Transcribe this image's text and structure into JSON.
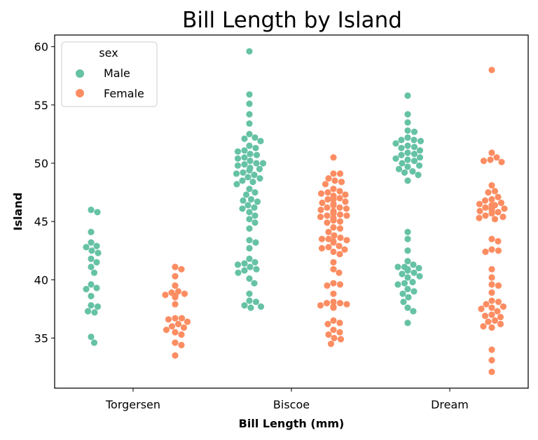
{
  "chart_data": {
    "type": "scatter",
    "subtype": "swarm",
    "title": "Bill Length by Island",
    "xlabel": "Bill Length (mm)",
    "ylabel": "Island",
    "categories": [
      "Torgersen",
      "Biscoe",
      "Dream"
    ],
    "ylim": [
      30.7,
      61.0
    ],
    "yticks": [
      35,
      40,
      45,
      50,
      55,
      60
    ],
    "grid": false,
    "legend": {
      "title": "sex",
      "placement": "top-left"
    },
    "series": [
      {
        "name": "Male",
        "color": "#66c2a5",
        "values": [
          [
            46.0,
            45.8,
            44.1,
            43.2,
            42.9,
            42.8,
            42.5,
            42.3,
            41.8,
            41.5,
            41.1,
            40.6,
            39.6,
            39.3,
            39.2,
            38.6,
            37.8,
            37.7,
            37.3,
            37.2,
            35.1,
            34.6
          ],
          [
            59.6,
            55.9,
            55.1,
            54.2,
            53.4,
            52.5,
            52.2,
            52.1,
            51.9,
            51.5,
            51.3,
            51.1,
            51.0,
            50.8,
            50.7,
            50.5,
            50.4,
            50.2,
            50.0,
            50.0,
            49.9,
            49.8,
            49.6,
            49.5,
            49.4,
            49.2,
            49.1,
            49.0,
            48.8,
            48.7,
            48.5,
            48.4,
            48.2,
            47.8,
            47.5,
            47.3,
            46.9,
            46.8,
            46.7,
            46.4,
            46.2,
            46.1,
            45.8,
            45.5,
            45.2,
            44.9,
            44.4,
            43.4,
            43.2,
            42.7,
            41.8,
            41.5,
            41.4,
            41.3,
            41.1,
            40.9,
            40.8,
            40.6,
            40.1,
            39.7,
            38.8,
            38.2,
            38.1,
            37.8,
            37.7,
            37.6
          ],
          [
            55.8,
            54.2,
            53.5,
            52.8,
            52.7,
            52.2,
            52.0,
            52.0,
            51.9,
            51.7,
            51.5,
            51.4,
            51.3,
            51.1,
            50.9,
            50.8,
            50.7,
            50.5,
            50.4,
            50.3,
            50.2,
            50.0,
            49.8,
            49.7,
            49.5,
            49.3,
            49.2,
            49.0,
            48.5,
            44.1,
            43.5,
            42.5,
            41.6,
            41.3,
            41.1,
            41.1,
            41.0,
            40.9,
            40.8,
            40.6,
            40.5,
            40.3,
            40.2,
            39.8,
            39.7,
            39.6,
            39.2,
            39.0,
            38.8,
            38.5,
            38.1,
            37.6,
            37.3,
            36.3
          ]
        ]
      },
      {
        "name": "Female",
        "color": "#fc8d62",
        "values": [
          [
            41.1,
            40.9,
            40.3,
            39.5,
            39.0,
            38.9,
            38.8,
            38.7,
            38.6,
            38.6,
            38.5,
            37.9,
            36.7,
            36.7,
            36.6,
            36.4,
            36.2,
            36.0,
            35.9,
            35.7,
            35.5,
            35.3,
            34.6,
            34.4,
            33.5
          ],
          [
            50.5,
            49.1,
            49.1,
            48.7,
            48.5,
            48.4,
            48.2,
            47.8,
            47.6,
            47.5,
            47.4,
            47.3,
            47.2,
            47.0,
            46.9,
            46.9,
            46.7,
            46.6,
            46.5,
            46.5,
            46.4,
            46.2,
            46.2,
            46.1,
            46.0,
            45.9,
            45.8,
            45.7,
            45.6,
            45.5,
            45.5,
            45.4,
            45.3,
            45.2,
            45.2,
            45.1,
            45.1,
            45.0,
            44.9,
            44.5,
            44.4,
            44.1,
            43.8,
            43.6,
            43.5,
            43.5,
            43.4,
            43.3,
            43.2,
            42.9,
            42.8,
            42.7,
            42.6,
            42.4,
            42.2,
            41.5,
            40.9,
            40.6,
            39.7,
            39.6,
            39.5,
            38.8,
            38.1,
            38.0,
            38.0,
            37.9,
            37.8,
            37.7,
            37.6,
            36.5,
            36.3,
            36.2,
            35.7,
            35.5,
            35.3,
            35.0,
            34.9,
            34.5
          ],
          [
            58.0,
            50.9,
            50.5,
            50.3,
            50.2,
            50.1,
            48.1,
            47.6,
            47.5,
            47.1,
            46.9,
            46.8,
            46.6,
            46.5,
            46.4,
            46.4,
            46.2,
            46.1,
            46.1,
            46.0,
            45.9,
            45.8,
            45.7,
            45.5,
            45.4,
            45.3,
            45.2,
            43.5,
            43.3,
            42.6,
            42.5,
            42.4,
            40.9,
            40.2,
            39.6,
            39.5,
            38.9,
            38.2,
            38.1,
            37.9,
            37.7,
            37.6,
            37.5,
            37.3,
            37.0,
            36.9,
            36.8,
            36.5,
            36.4,
            36.2,
            36.0,
            35.9,
            34.0,
            33.1,
            32.1
          ]
        ]
      }
    ]
  }
}
